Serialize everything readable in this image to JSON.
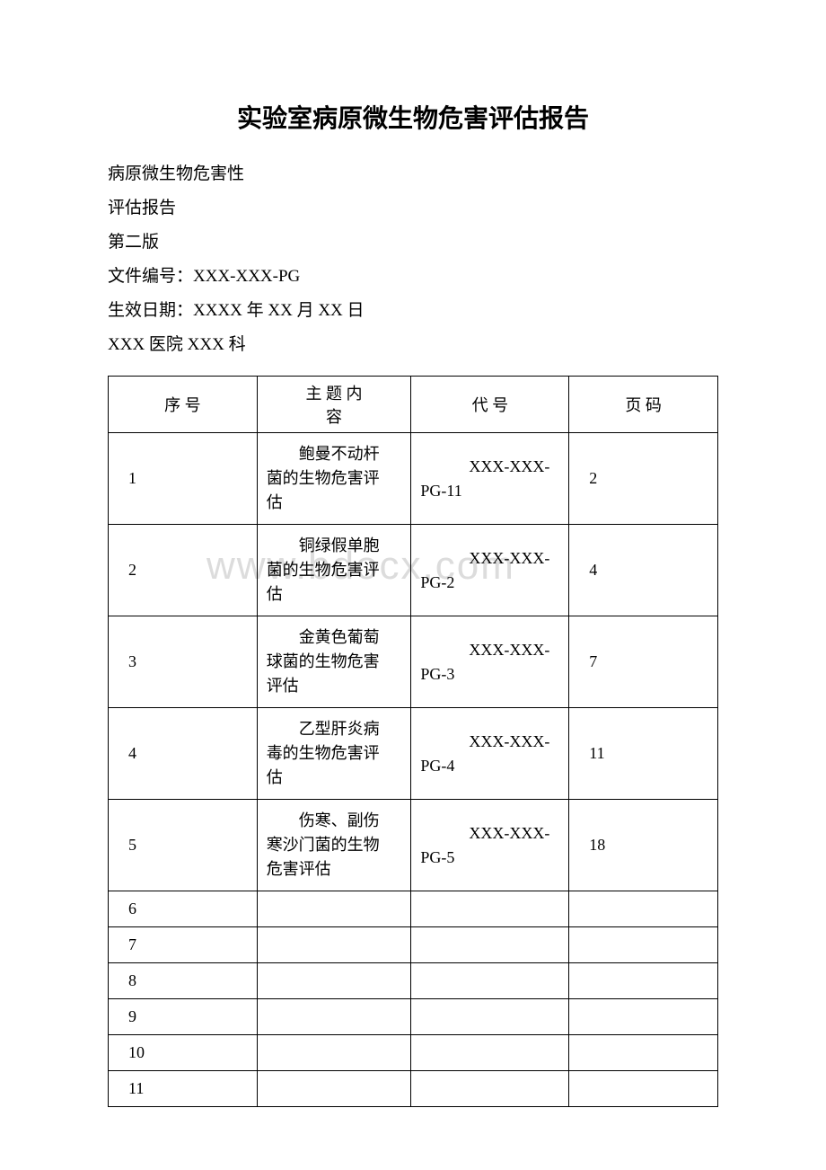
{
  "title": "实验室病原微生物危害评估报告",
  "meta": {
    "line1": "病原微生物危害性",
    "line2": "评估报告",
    "line3": "第二版",
    "line4": "文件编号：XXX-XXX-PG",
    "line5": "生效日期：XXXX 年 XX 月 XX 日",
    "line6": "XXX 医院 XXX 科"
  },
  "headers": {
    "seq": "序 号",
    "subject1": "主 题  内",
    "subject2": "容",
    "code": "代 号",
    "page": "页 码"
  },
  "rows": [
    {
      "seq": "1",
      "subject1": "鲍曼不动杆",
      "subject2": "菌的生物危害评",
      "subject3": "估",
      "code1": "XXX-XXX-",
      "code2": "PG-11",
      "page": "2"
    },
    {
      "seq": "2",
      "subject1": "铜绿假单胞",
      "subject2": "菌的生物危害评",
      "subject3": "估",
      "code1": "XXX-XXX-",
      "code2": "PG-2",
      "page": "4"
    },
    {
      "seq": "3",
      "subject1": "金黄色葡萄",
      "subject2": "球菌的生物危害",
      "subject3": "评估",
      "code1": "XXX-XXX-",
      "code2": "PG-3",
      "page": "7"
    },
    {
      "seq": "4",
      "subject1": "乙型肝炎病",
      "subject2": "毒的生物危害评",
      "subject3": "估",
      "code1": "XXX-XXX-",
      "code2": "PG-4",
      "page": "11"
    },
    {
      "seq": "5",
      "subject1": "伤寒、副伤",
      "subject2": "寒沙门菌的生物",
      "subject3": "危害评估",
      "code1": "XXX-XXX-",
      "code2": "PG-5",
      "page": "18"
    }
  ],
  "emptyRows": [
    "6",
    "7",
    "8",
    "9",
    "10",
    "11"
  ],
  "watermark": "www.bdocx.com"
}
